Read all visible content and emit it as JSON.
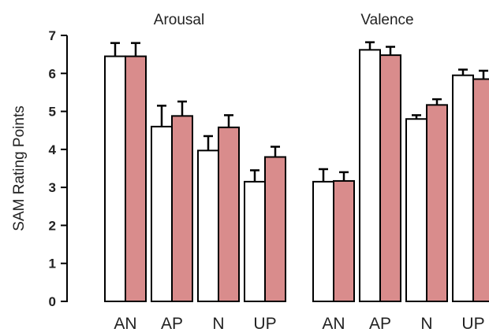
{
  "chart_data": {
    "type": "bar",
    "ylabel": "SAM Rating Points",
    "ylim": [
      0,
      7
    ],
    "yticks": [
      0,
      1,
      2,
      3,
      4,
      5,
      6,
      7
    ],
    "grid": false,
    "series_colors": [
      "#ffffff",
      "#d98c8c"
    ],
    "bar_stroke": "#000000",
    "panels": [
      {
        "title": "Arousal",
        "categories": [
          "AN",
          "AP",
          "N",
          "UP"
        ],
        "series": [
          {
            "values": [
              6.45,
              4.6,
              3.97,
              3.15
            ],
            "errors": [
              0.35,
              0.55,
              0.38,
              0.3
            ]
          },
          {
            "values": [
              6.45,
              4.88,
              4.58,
              3.8
            ],
            "errors": [
              0.35,
              0.38,
              0.32,
              0.27
            ]
          }
        ]
      },
      {
        "title": "Valence",
        "categories": [
          "AN",
          "AP",
          "N",
          "UP"
        ],
        "series": [
          {
            "values": [
              3.15,
              6.62,
              4.8,
              5.95
            ],
            "errors": [
              0.33,
              0.2,
              0.1,
              0.15
            ]
          },
          {
            "values": [
              3.17,
              6.48,
              5.17,
              5.85
            ],
            "errors": [
              0.23,
              0.22,
              0.15,
              0.22
            ]
          }
        ]
      }
    ]
  }
}
